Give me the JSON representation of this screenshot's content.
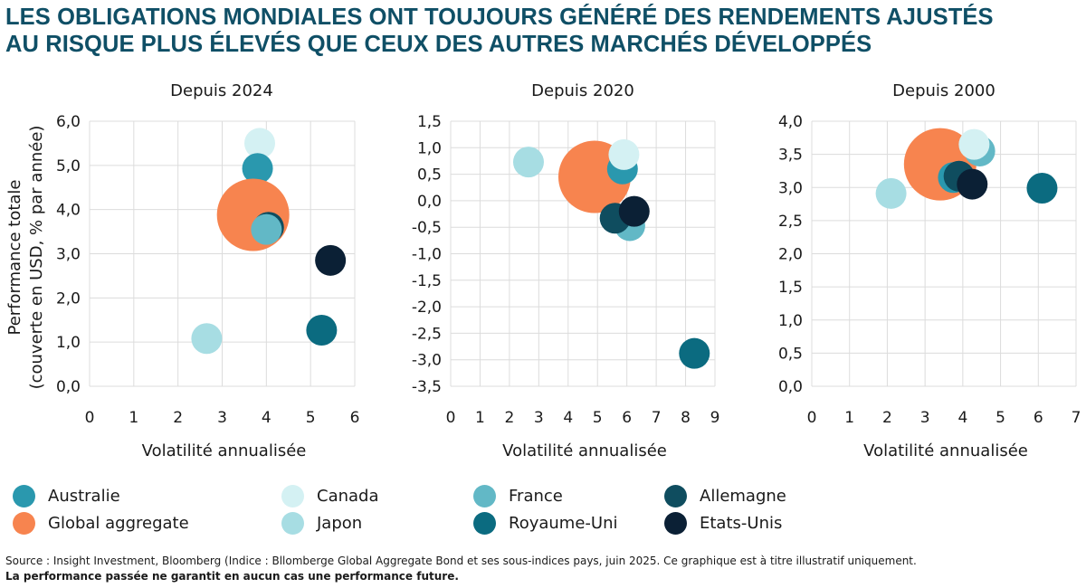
{
  "title": {
    "line1": "LES OBLIGATIONS MONDIALES ONT TOUJOURS GÉNÉRÉ DES RENDEMENTS AJUSTÉS",
    "line2": "AU RISQUE PLUS ÉLEVÉS QUE CEUX DES AUTRES MARCHÉS DÉVELOPPÉS"
  },
  "colors": {
    "Australie": "#2a98ae",
    "Canada": "#d4f1f3",
    "France": "#62b8c6",
    "Allemagne": "#0f4d5f",
    "Global aggregate": "#f7844f",
    "Japon": "#a7dde3",
    "Royaume-Uni": "#0b6b80",
    "Etats-Unis": "#0b2035"
  },
  "legend": [
    {
      "name": "Australie"
    },
    {
      "name": "Canada"
    },
    {
      "name": "France"
    },
    {
      "name": "Allemagne"
    },
    {
      "name": "Global aggregate"
    },
    {
      "name": "Japon"
    },
    {
      "name": "Royaume-Uni"
    },
    {
      "name": "Etats-Unis"
    }
  ],
  "chart_data": [
    {
      "type": "scatter",
      "title": "Depuis 2024",
      "xlabel": "Volatilité annualisée",
      "ylabel": [
        "Performance totale",
        "(couverte en USD, % par année)"
      ],
      "xlim": [
        0,
        6
      ],
      "ylim": [
        0,
        6
      ],
      "xticks": [
        0,
        1,
        2,
        3,
        4,
        5,
        6
      ],
      "yticks": [
        0,
        1,
        2,
        3,
        4,
        5,
        6
      ],
      "ytick_labels": [
        "0,0",
        "1,0",
        "2,0",
        "3,0",
        "4,0",
        "5,0",
        "6,0"
      ],
      "points": [
        {
          "series": "Canada",
          "x": 3.85,
          "y": 5.5
        },
        {
          "series": "Australie",
          "x": 3.8,
          "y": 4.93
        },
        {
          "series": "Global aggregate",
          "x": 3.7,
          "y": 3.88
        },
        {
          "series": "Allemagne",
          "x": 4.05,
          "y": 3.6
        },
        {
          "series": "France",
          "x": 4.0,
          "y": 3.55
        },
        {
          "series": "Etats-Unis",
          "x": 5.45,
          "y": 2.85
        },
        {
          "series": "Royaume-Uni",
          "x": 5.25,
          "y": 1.27
        },
        {
          "series": "Japon",
          "x": 2.65,
          "y": 1.08
        }
      ]
    },
    {
      "type": "scatter",
      "title": "Depuis 2020",
      "xlabel": "Volatilité annualisée",
      "ylabel": [],
      "xlim": [
        0,
        9
      ],
      "ylim": [
        -3.5,
        1.5
      ],
      "xticks": [
        0,
        1,
        2,
        3,
        4,
        5,
        6,
        7,
        8,
        9
      ],
      "yticks": [
        1.5,
        1.0,
        0.5,
        0.0,
        -0.5,
        -1.0,
        -1.5,
        -2.0,
        -2.5,
        -3.0,
        -3.5
      ],
      "ytick_labels": [
        "1,5",
        "1,0",
        "0,5",
        "0,0",
        "-0,5",
        "-1,0",
        "-1,5",
        "-2,0",
        "-2,5",
        "-3,0",
        "-3,5"
      ],
      "points": [
        {
          "series": "Japon",
          "x": 2.65,
          "y": 0.73
        },
        {
          "series": "Global aggregate",
          "x": 4.9,
          "y": 0.45
        },
        {
          "series": "Australie",
          "x": 5.85,
          "y": 0.6
        },
        {
          "series": "Canada",
          "x": 5.9,
          "y": 0.87
        },
        {
          "series": "France",
          "x": 6.1,
          "y": -0.47
        },
        {
          "series": "Allemagne",
          "x": 5.6,
          "y": -0.33
        },
        {
          "series": "Etats-Unis",
          "x": 6.25,
          "y": -0.2
        },
        {
          "series": "Royaume-Uni",
          "x": 8.3,
          "y": -2.88
        }
      ]
    },
    {
      "type": "scatter",
      "title": "Depuis 2000",
      "xlabel": "Volatilité annualisée",
      "ylabel": [],
      "xlim": [
        0,
        7
      ],
      "ylim": [
        0,
        4
      ],
      "xticks": [
        0,
        1,
        2,
        3,
        4,
        5,
        6,
        7
      ],
      "yticks": [
        0,
        0.5,
        1,
        1.5,
        2,
        2.5,
        3,
        3.5,
        4
      ],
      "ytick_labels": [
        "0,0",
        "0,5",
        "1,0",
        "1,5",
        "2,0",
        "2,5",
        "3,0",
        "3,5",
        "4,0"
      ],
      "points": [
        {
          "series": "Japon",
          "x": 2.1,
          "y": 2.91
        },
        {
          "series": "Global aggregate",
          "x": 3.4,
          "y": 3.35
        },
        {
          "series": "France",
          "x": 4.45,
          "y": 3.55
        },
        {
          "series": "Canada",
          "x": 4.3,
          "y": 3.65
        },
        {
          "series": "Australie",
          "x": 3.75,
          "y": 3.15
        },
        {
          "series": "Allemagne",
          "x": 3.9,
          "y": 3.17
        },
        {
          "series": "Etats-Unis",
          "x": 4.25,
          "y": 3.05
        },
        {
          "series": "Royaume-Uni",
          "x": 6.1,
          "y": 2.99
        }
      ]
    }
  ],
  "footer": {
    "line1": "Source : Insight Investment, Bloomberg (Indice : Bllomberge Global Aggregate Bond et ses sous-indices pays, juin 2025. Ce graphique est à titre illustratif uniquement.",
    "line2": "La performance passée ne garantit en aucun cas une performance future."
  }
}
